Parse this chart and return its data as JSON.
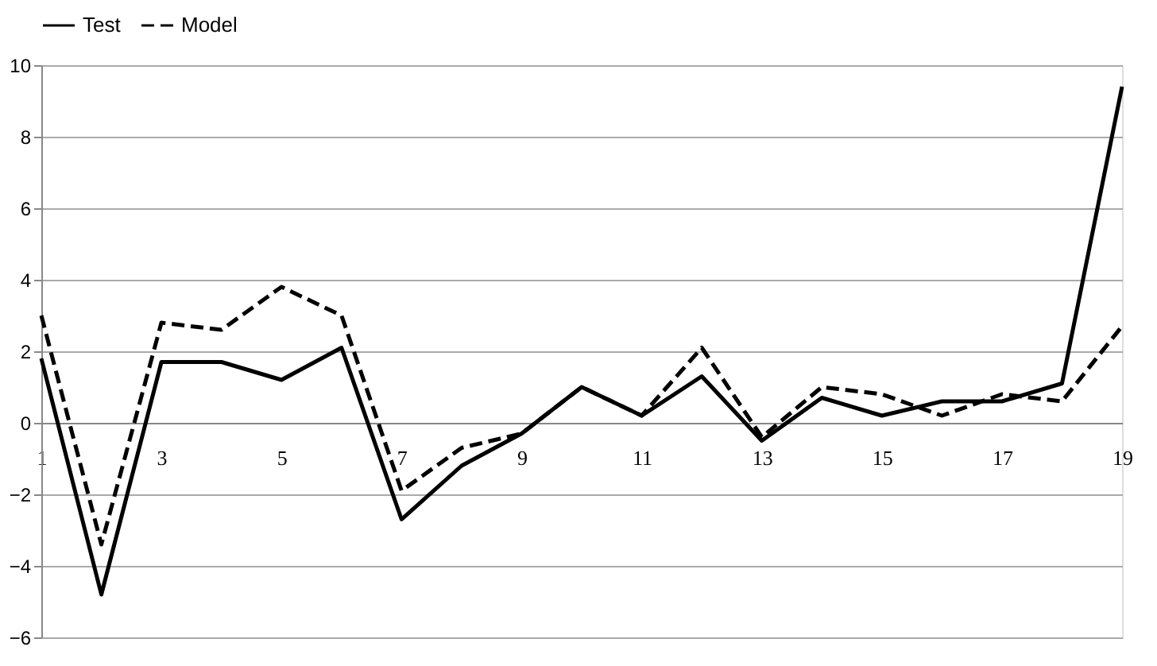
{
  "chart_data": {
    "type": "line",
    "categories": [
      "1",
      null,
      "3",
      null,
      "5",
      null,
      "7",
      null,
      "9",
      null,
      "11",
      null,
      "13",
      null,
      "15",
      null,
      "17",
      null,
      "19"
    ],
    "series": [
      {
        "name": "Test",
        "color": "#000000",
        "line_style": "solid",
        "values": [
          1.8,
          -4.8,
          1.7,
          1.7,
          1.2,
          2.1,
          -2.7,
          -1.2,
          -0.3,
          1.0,
          0.2,
          1.3,
          -0.5,
          0.7,
          0.2,
          0.6,
          0.6,
          1.1,
          9.4
        ]
      },
      {
        "name": "Model",
        "color": "#000000",
        "line_style": "dashed",
        "values": [
          3.0,
          -3.4,
          2.8,
          2.6,
          3.8,
          3.0,
          -1.9,
          -0.7,
          -0.3,
          1.0,
          0.2,
          2.1,
          -0.4,
          1.0,
          0.8,
          0.2,
          0.8,
          0.6,
          2.7
        ]
      }
    ],
    "ylim": [
      -6,
      10
    ],
    "yticks": [
      -6,
      -4,
      -2,
      0,
      2,
      4,
      6,
      8,
      10
    ],
    "grid": "y",
    "legend": "top",
    "marker": "none"
  }
}
